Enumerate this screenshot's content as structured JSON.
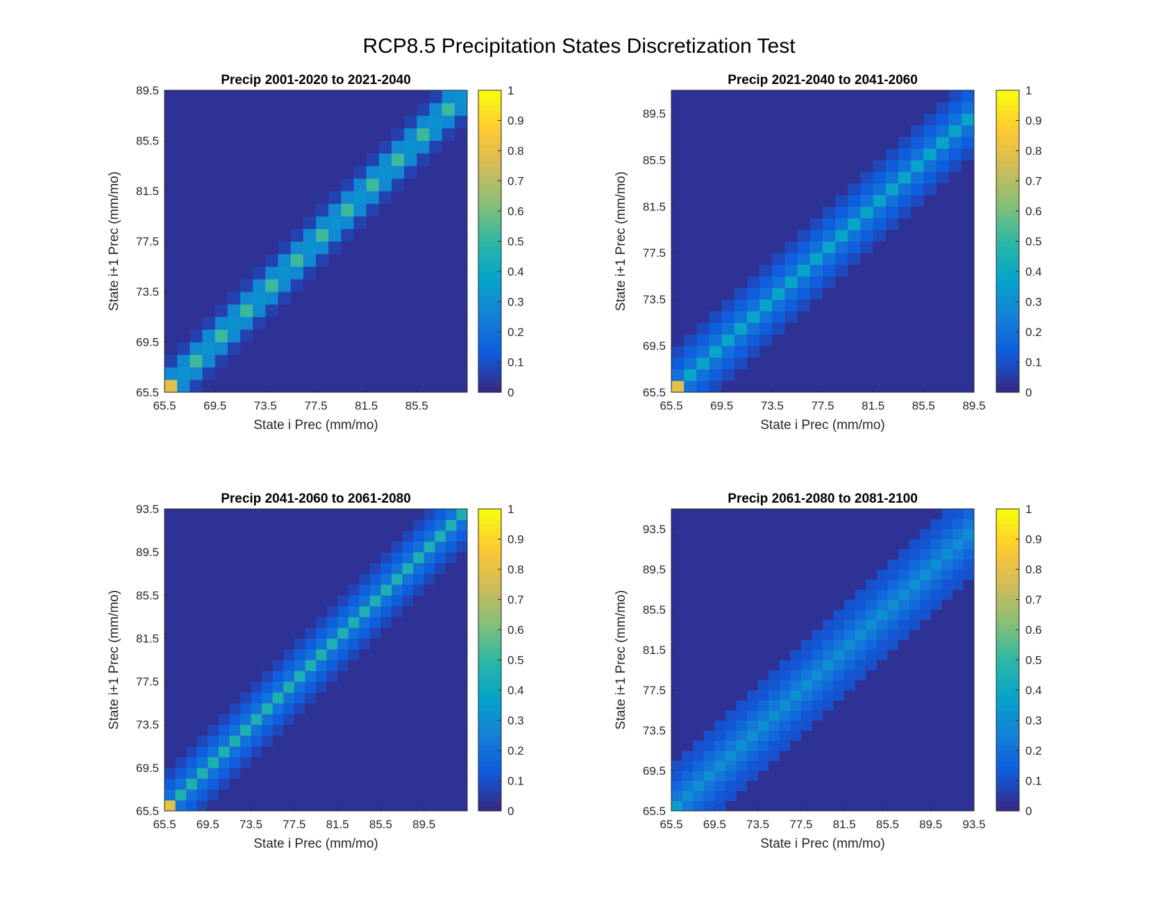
{
  "figure": {
    "suptitle": "RCP8.5 Precipitation States Discretization Test"
  },
  "colormap": {
    "name": "parula",
    "stops": [
      "#352A87",
      "#0F5CDD",
      "#1481D6",
      "#06A4CA",
      "#2EB7A4",
      "#87BF77",
      "#D1BB59",
      "#FEC832",
      "#F9FB0E"
    ]
  },
  "chart_data": [
    {
      "type": "heatmap",
      "title": "Precip 2001-2020 to 2021-2040",
      "xlabel": "State i Prec (mm/mo)",
      "ylabel": "State i+1 Prec (mm/mo)",
      "n_states": 24,
      "state_min": 65.5,
      "state_step": 1,
      "xticks": [
        "65.5",
        "69.5",
        "73.5",
        "77.5",
        "81.5",
        "85.5"
      ],
      "yticks": [
        "65.5",
        "69.5",
        "73.5",
        "77.5",
        "81.5",
        "85.5",
        "89.5"
      ],
      "xlim": [
        65.5,
        89.5
      ],
      "ylim": [
        65.5,
        89.5
      ],
      "corner_value": 0.8,
      "diagonal": {
        "main": 0.52,
        "off": 0.28,
        "far": 0.06,
        "bandwidth": 1
      },
      "colorbar": {
        "ticks": [
          "0",
          "0.1",
          "0.2",
          "0.3",
          "0.4",
          "0.5",
          "0.6",
          "0.7",
          "0.8",
          "0.9",
          "1"
        ],
        "clim": [
          0,
          1
        ]
      }
    },
    {
      "type": "heatmap",
      "title": "Precip 2021-2040 to 2041-2060",
      "xlabel": "State i Prec (mm/mo)",
      "ylabel": "State i+1 Prec (mm/mo)",
      "n_states": 26,
      "state_min": 65.5,
      "state_step": 1,
      "xticks": [
        "65.5",
        "69.5",
        "73.5",
        "77.5",
        "81.5",
        "85.5",
        "89.5"
      ],
      "yticks": [
        "65.5",
        "69.5",
        "73.5",
        "77.5",
        "81.5",
        "85.5",
        "89.5"
      ],
      "xlim": [
        65.5,
        89.5
      ],
      "ylim": [
        65.5,
        91.5
      ],
      "corner_value": 0.8,
      "diagonal": {
        "main": 0.38,
        "off": 0.2,
        "far": 0.08,
        "bandwidth": 2
      },
      "colorbar": {
        "ticks": [
          "0",
          "0.1",
          "0.2",
          "0.3",
          "0.4",
          "0.5",
          "0.6",
          "0.7",
          "0.8",
          "0.9",
          "1"
        ],
        "clim": [
          0,
          1
        ]
      }
    },
    {
      "type": "heatmap",
      "title": "Precip 2041-2060 to 2061-2080",
      "xlabel": "State i Prec (mm/mo)",
      "ylabel": "State i+1 Prec (mm/mo)",
      "n_states": 28,
      "state_min": 65.5,
      "state_step": 1,
      "xticks": [
        "65.5",
        "69.5",
        "73.5",
        "77.5",
        "81.5",
        "85.5",
        "89.5"
      ],
      "yticks": [
        "65.5",
        "69.5",
        "73.5",
        "77.5",
        "81.5",
        "85.5",
        "89.5",
        "93.5"
      ],
      "xlim": [
        65.5,
        93.5
      ],
      "ylim": [
        65.5,
        93.5
      ],
      "corner_value": 0.8,
      "diagonal": {
        "main": 0.45,
        "off": 0.2,
        "far": 0.07,
        "bandwidth": 2
      },
      "colorbar": {
        "ticks": [
          "0",
          "0.1",
          "0.2",
          "0.3",
          "0.4",
          "0.5",
          "0.6",
          "0.7",
          "0.8",
          "0.9",
          "1"
        ],
        "clim": [
          0,
          1
        ]
      }
    },
    {
      "type": "heatmap",
      "title": "Precip 2061-2080 to 2081-2100",
      "xlabel": "State i Prec (mm/mo)",
      "ylabel": "State i+1 Prec (mm/mo)",
      "n_states": 30,
      "state_min": 65.5,
      "state_step": 1,
      "xticks": [
        "65.5",
        "69.5",
        "73.5",
        "77.5",
        "81.5",
        "85.5",
        "89.5",
        "93.5"
      ],
      "yticks": [
        "65.5",
        "69.5",
        "73.5",
        "77.5",
        "81.5",
        "85.5",
        "89.5",
        "93.5"
      ],
      "xlim": [
        65.5,
        93.5
      ],
      "ylim": [
        65.5,
        95.5
      ],
      "corner_value": 0.35,
      "diagonal": {
        "main": 0.3,
        "off": 0.22,
        "far": 0.1,
        "bandwidth": 3
      },
      "colorbar": {
        "ticks": [
          "0",
          "0.1",
          "0.2",
          "0.3",
          "0.4",
          "0.5",
          "0.6",
          "0.7",
          "0.8",
          "0.9",
          "1"
        ],
        "clim": [
          0,
          1
        ]
      }
    }
  ]
}
